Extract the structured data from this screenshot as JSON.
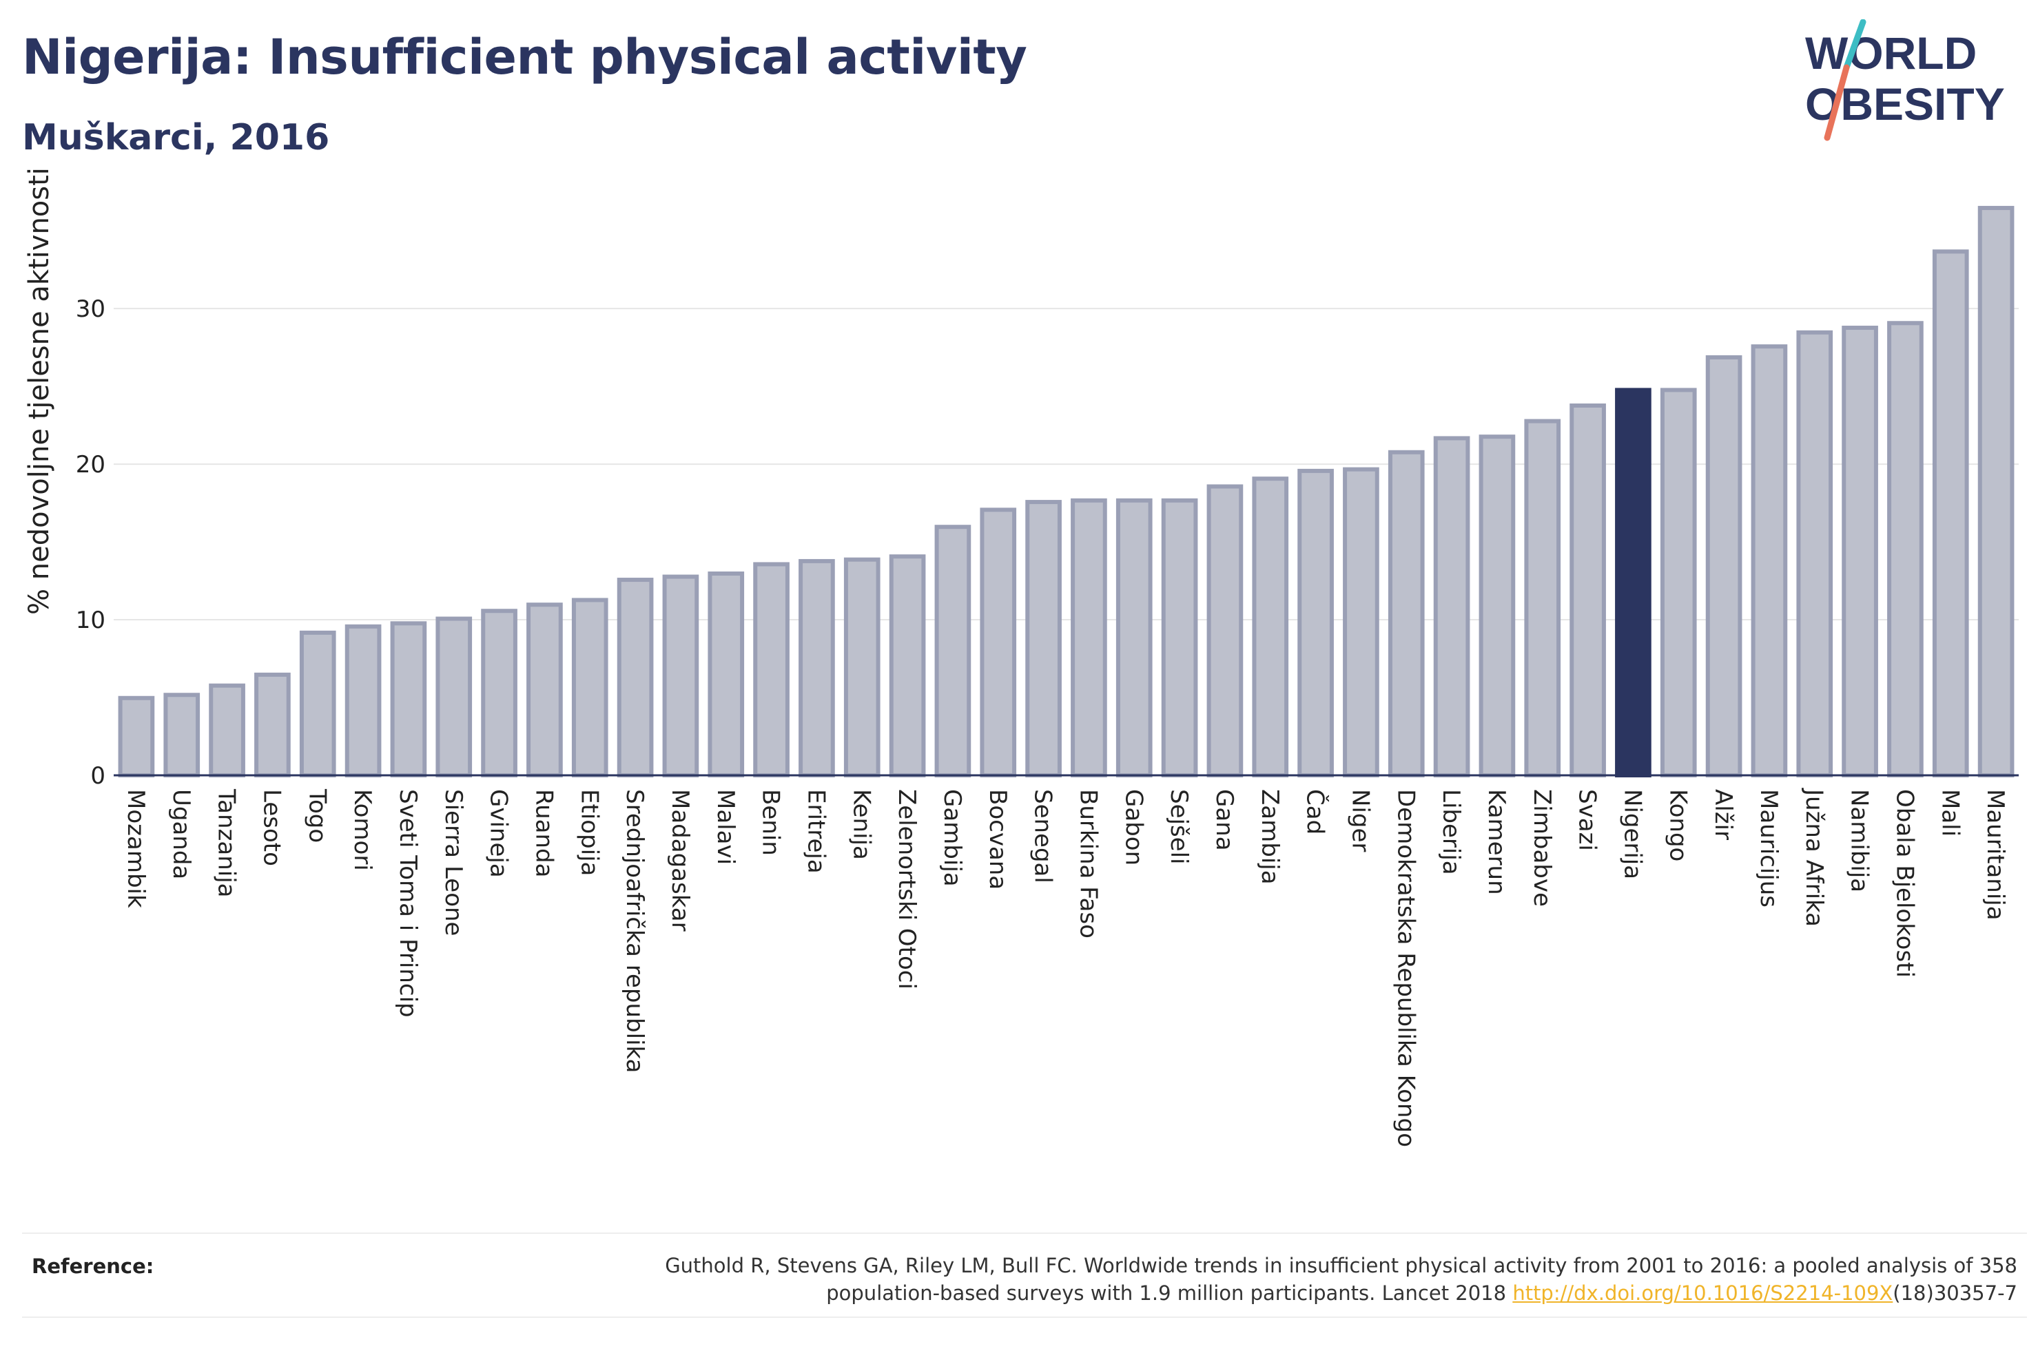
{
  "header": {
    "title": "Nigerija: Insufficient physical activity",
    "subtitle": "Muškarci, 2016"
  },
  "logo": {
    "line1": "WORLD",
    "line2": "OBESITY",
    "slash_color_top": "#3dbdc4",
    "slash_color_bottom": "#e8735a"
  },
  "colors": {
    "bar_fill": "#bdc0cc",
    "bar_stroke": "#9a9fb5",
    "highlight": "#2b3560",
    "grid": "#e6e6e6",
    "axis": "#2b3560"
  },
  "chart_data": {
    "type": "bar",
    "ylabel": "% nedovoljne tjelesne aktivnosti",
    "xlabel": "",
    "ylim": [
      0,
      37
    ],
    "yticks": [
      0,
      10,
      20,
      30
    ],
    "highlight_category": "Nigerija",
    "grid": true,
    "categories": [
      "Mozambik",
      "Uganda",
      "Tanzanija",
      "Lesoto",
      "Togo",
      "Komori",
      "Sveti Toma i Princip",
      "Sierra Leone",
      "Gvineja",
      "Ruanda",
      "Etiopija",
      "Srednjoafrička republika",
      "Madagaskar",
      "Malavi",
      "Benin",
      "Eritreja",
      "Kenija",
      "Zelenortski Otoci",
      "Gambija",
      "Bocvana",
      "Senegal",
      "Burkina Faso",
      "Gabon",
      "Sejšeli",
      "Gana",
      "Zambija",
      "Čad",
      "Niger",
      "Demokratska Republika Kongo",
      "Liberija",
      "Kamerun",
      "Zimbabve",
      "Svazi",
      "Nigerija",
      "Kongo",
      "Alžir",
      "Mauricijus",
      "Južna Afrika",
      "Namibija",
      "Obala Bjelokosti",
      "Mali",
      "Mauritanija"
    ],
    "values": [
      5.1,
      5.3,
      5.9,
      6.6,
      9.3,
      9.7,
      9.9,
      10.2,
      10.7,
      11.1,
      11.4,
      12.7,
      12.9,
      13.1,
      13.7,
      13.9,
      14.0,
      14.2,
      16.1,
      17.2,
      17.7,
      17.8,
      17.8,
      17.8,
      18.7,
      19.2,
      19.7,
      19.8,
      20.9,
      21.8,
      21.9,
      22.9,
      23.9,
      24.9,
      24.9,
      27.0,
      27.7,
      28.6,
      28.9,
      29.2,
      33.8,
      36.6
    ]
  },
  "footer": {
    "reference_label": "Reference:",
    "reference_text_1": "Guthold R, Stevens GA, Riley LM, Bull FC. Worldwide trends in insufficient physical activity from 2001 to 2016: a pooled analysis of 358",
    "reference_text_2": "population-based surveys with 1.9 million participants. Lancet 2018 ",
    "reference_link": "http://dx.doi.org/10.1016/S2214-109X",
    "reference_text_3": "(18)30357-7"
  }
}
